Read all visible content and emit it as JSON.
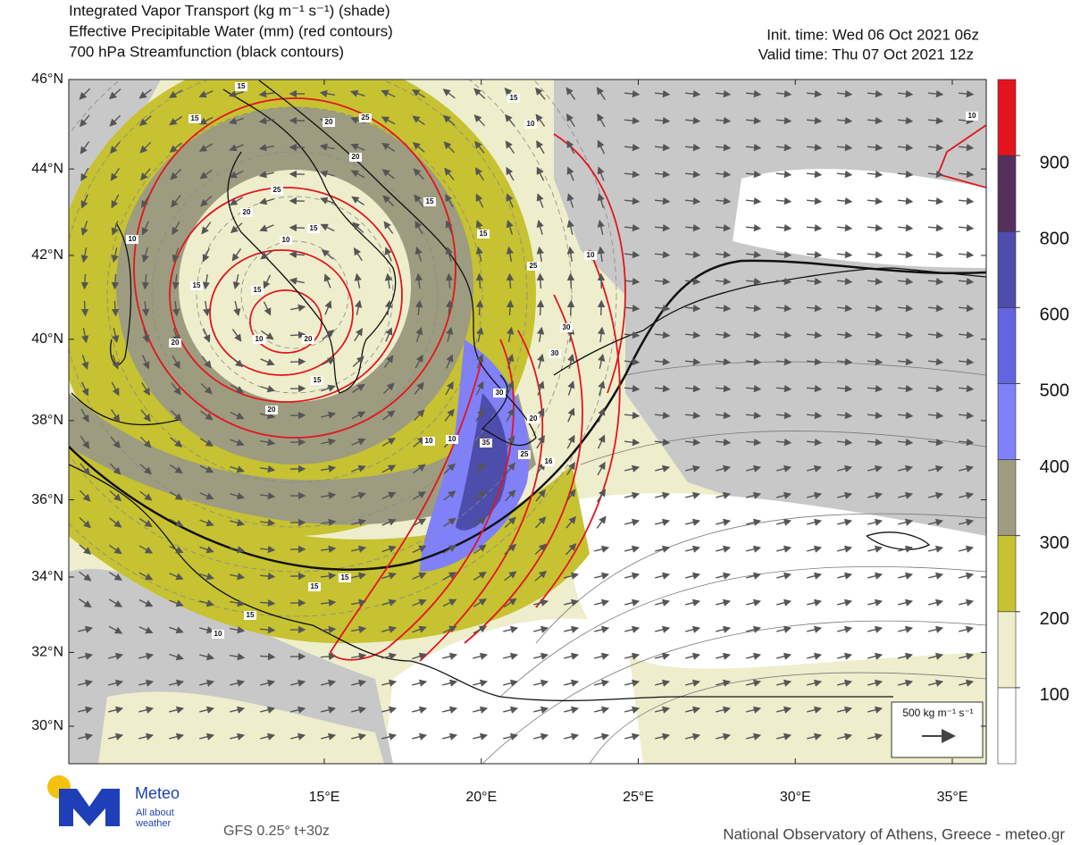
{
  "header": {
    "title_lines": [
      "Integrated Vapor Transport (kg m⁻¹ s⁻¹) (shade)",
      "Effective Precipitable Water (mm) (red contours)",
      "700 hPa Streamfunction (black contours)"
    ],
    "init_time": "Init. time: Wed 06 Oct 2021 06z",
    "valid_time": "Valid time: Thu 07 Oct 2021 12z"
  },
  "map": {
    "lat_ticks": [
      {
        "value": 46,
        "label": "46°N"
      },
      {
        "value": 44,
        "label": "44°N"
      },
      {
        "value": 42,
        "label": "42°N"
      },
      {
        "value": 40,
        "label": "40°N"
      },
      {
        "value": 38,
        "label": "38°N"
      },
      {
        "value": 36,
        "label": "36°N"
      },
      {
        "value": 34,
        "label": "34°N"
      },
      {
        "value": 32,
        "label": "32°N"
      },
      {
        "value": 30,
        "label": "30°N"
      }
    ],
    "lon_ticks": [
      {
        "value": 15,
        "label": "15°E"
      },
      {
        "value": 20,
        "label": "20°E"
      },
      {
        "value": 25,
        "label": "25°E"
      },
      {
        "value": 30,
        "label": "30°E"
      },
      {
        "value": 35,
        "label": "35°E"
      }
    ],
    "contour_labels": [
      "15",
      "15",
      "20",
      "25",
      "15",
      "10",
      "20",
      "25",
      "15",
      "20",
      "10",
      "15",
      "15",
      "10",
      "25",
      "10",
      "15",
      "15",
      "10",
      "20",
      "20",
      "30",
      "30",
      "15",
      "20",
      "30",
      "20",
      "10",
      "10",
      "35",
      "25",
      "16",
      "15",
      "15",
      "15",
      "10",
      "10"
    ]
  },
  "colorbar": {
    "levels": [
      100,
      200,
      300,
      400,
      500,
      600,
      800,
      900
    ],
    "colors": [
      "#ffffff",
      "#eeeecd",
      "#c6c231",
      "#9d9c80",
      "#8080f8",
      "#6464e0",
      "#4d4dab",
      "#55305e",
      "#e4141e"
    ]
  },
  "vector_legend": "500 kg m⁻¹ s⁻¹",
  "logo": {
    "name": "Meteo",
    "tagline_lines": [
      "All about",
      "weather"
    ]
  },
  "footer": {
    "model": "GFS 0.25° t+30z",
    "credit": "National Observatory of Athens, Greece - meteo.gr"
  }
}
